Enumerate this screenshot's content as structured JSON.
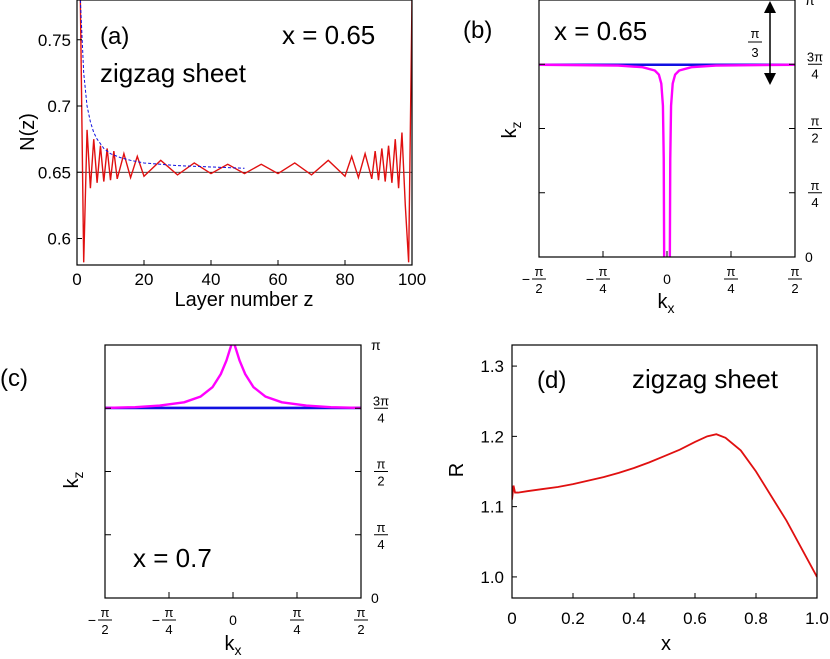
{
  "chart_data": [
    {
      "panel": "(a)",
      "type": "line",
      "xlabel": "Layer number z",
      "ylabel": "N(z)",
      "xlim": [
        0,
        100
      ],
      "ylim": [
        0.58,
        0.78
      ],
      "xticks": [
        "0",
        "20",
        "40",
        "60",
        "80",
        "100"
      ],
      "xtick_values": [
        0,
        20,
        40,
        60,
        80,
        100
      ],
      "yticks": [
        "0.6",
        "0.65",
        "0.7",
        "0.75"
      ],
      "ytick_values": [
        0.6,
        0.65,
        0.7,
        0.75
      ],
      "annotations": [
        "x = 0.65",
        "zigzag sheet"
      ],
      "reference_line": 0.65,
      "series": [
        {
          "style": "solid",
          "color": "#e01010",
          "x": [
            1,
            2,
            3,
            4,
            5,
            6,
            7,
            8,
            9,
            10,
            11,
            12,
            14,
            16,
            18,
            20,
            25,
            30,
            35,
            40,
            45,
            50,
            55,
            60,
            65,
            70,
            75,
            80,
            82,
            84,
            86,
            88,
            89,
            90,
            91,
            92,
            93,
            94,
            95,
            96,
            97,
            98,
            99,
            100
          ],
          "y": [
            0.78,
            0.582,
            0.682,
            0.638,
            0.675,
            0.642,
            0.67,
            0.643,
            0.668,
            0.644,
            0.666,
            0.645,
            0.664,
            0.646,
            0.662,
            0.647,
            0.659,
            0.648,
            0.657,
            0.649,
            0.656,
            0.649,
            0.656,
            0.649,
            0.657,
            0.648,
            0.659,
            0.647,
            0.662,
            0.646,
            0.664,
            0.645,
            0.666,
            0.644,
            0.668,
            0.643,
            0.67,
            0.642,
            0.675,
            0.638,
            0.68,
            0.625,
            0.582,
            0.78
          ]
        },
        {
          "style": "dashed",
          "color": "#1010e0",
          "x": [
            1,
            2,
            3,
            4,
            5,
            6,
            8,
            10,
            13,
            16,
            20,
            25,
            30,
            40,
            50
          ],
          "y": [
            0.78,
            0.725,
            0.7,
            0.688,
            0.68,
            0.675,
            0.668,
            0.664,
            0.661,
            0.659,
            0.657,
            0.656,
            0.655,
            0.654,
            0.653
          ]
        }
      ]
    },
    {
      "panel": "(b)",
      "type": "line",
      "xlabel": "kx",
      "ylabel": "kz",
      "annotations": [
        "x = 0.65",
        "π/3"
      ],
      "xticks": [
        "−π/2",
        "−π/4",
        "0",
        "π/4",
        "π/2"
      ],
      "yticks": [
        "0",
        "π/4",
        "π/2",
        "3π/4",
        "π"
      ],
      "xlim": [
        -1.5708,
        1.5708
      ],
      "ylim": [
        0,
        3.1416
      ],
      "flat_level": 2.35,
      "series": [
        {
          "color": "#1010e0",
          "x": [
            -1.5708,
            1.5708
          ],
          "y": [
            2.35,
            2.35
          ]
        },
        {
          "color": "#ff00ff",
          "shape": "narrow dip",
          "x": [
            -1.5708,
            -0.6,
            -0.3,
            -0.15,
            -0.1,
            -0.07,
            -0.05,
            -0.04,
            -0.035
          ],
          "y": [
            2.35,
            2.34,
            2.32,
            2.28,
            2.23,
            2.12,
            1.85,
            1.2,
            0
          ]
        },
        {
          "color": "#ff00ff",
          "shape": "narrow dip",
          "x": [
            0.035,
            0.04,
            0.05,
            0.07,
            0.1,
            0.15,
            0.3,
            0.6,
            1.5708
          ],
          "y": [
            0,
            1.2,
            1.85,
            2.12,
            2.23,
            2.28,
            2.32,
            2.34,
            2.35
          ]
        }
      ]
    },
    {
      "panel": "(c)",
      "type": "line",
      "xlabel": "kx",
      "ylabel": "kz",
      "annotations": [
        "x = 0.7"
      ],
      "xticks": [
        "−π/2",
        "−π/4",
        "0",
        "π/4",
        "π/2"
      ],
      "yticks": [
        "0",
        "π/4",
        "π/2",
        "3π/4",
        "π"
      ],
      "xlim": [
        -1.5708,
        1.5708
      ],
      "ylim": [
        0,
        3.1416
      ],
      "flat_level": 2.36,
      "series": [
        {
          "color": "#1010e0",
          "x": [
            -1.5708,
            1.5708
          ],
          "y": [
            2.36,
            2.36
          ]
        },
        {
          "color": "#ff00ff",
          "shape": "cusp",
          "x": [
            -1.5708,
            -1.2,
            -0.9,
            -0.6,
            -0.4,
            -0.25,
            -0.15,
            -0.08,
            -0.04,
            -0.02
          ],
          "y": [
            2.36,
            2.37,
            2.39,
            2.43,
            2.5,
            2.62,
            2.78,
            2.95,
            3.08,
            3.1416
          ]
        },
        {
          "color": "#ff00ff",
          "shape": "cusp",
          "x": [
            0.02,
            0.04,
            0.08,
            0.15,
            0.25,
            0.4,
            0.6,
            0.9,
            1.2,
            1.5708
          ],
          "y": [
            3.1416,
            3.08,
            2.95,
            2.78,
            2.62,
            2.5,
            2.43,
            2.39,
            2.37,
            2.36
          ]
        }
      ]
    },
    {
      "panel": "(d)",
      "type": "line",
      "xlabel": "x",
      "ylabel": "R",
      "annotations": [
        "zigzag sheet"
      ],
      "xlim": [
        0,
        1
      ],
      "ylim": [
        0.97,
        1.33
      ],
      "xticks": [
        "0",
        "0.2",
        "0.4",
        "0.6",
        "0.8",
        "1.0"
      ],
      "xtick_values": [
        0,
        0.2,
        0.4,
        0.6,
        0.8,
        1.0
      ],
      "yticks": [
        "1.0",
        "1.1",
        "1.2",
        "1.3"
      ],
      "ytick_values": [
        1.0,
        1.1,
        1.2,
        1.3
      ],
      "series": [
        {
          "color": "#e01010",
          "x": [
            0,
            0.005,
            0.01,
            0.02,
            0.05,
            0.1,
            0.15,
            0.2,
            0.25,
            0.3,
            0.35,
            0.4,
            0.45,
            0.5,
            0.55,
            0.6,
            0.64,
            0.67,
            0.7,
            0.75,
            0.8,
            0.85,
            0.9,
            0.95,
            1.0
          ],
          "y": [
            1.11,
            1.13,
            1.12,
            1.12,
            1.122,
            1.125,
            1.128,
            1.132,
            1.137,
            1.142,
            1.148,
            1.155,
            1.163,
            1.172,
            1.181,
            1.192,
            1.2,
            1.203,
            1.198,
            1.18,
            1.15,
            1.115,
            1.08,
            1.04,
            1.0
          ]
        }
      ]
    }
  ]
}
